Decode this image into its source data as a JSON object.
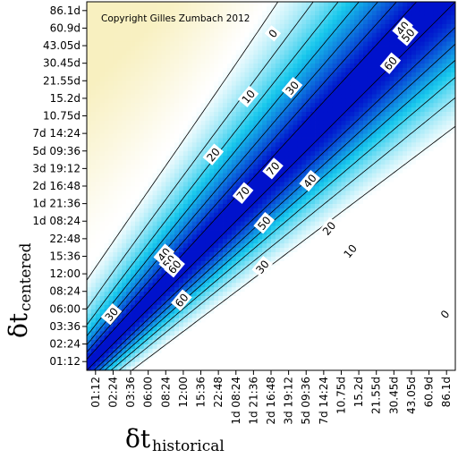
{
  "chart_data": {
    "type": "heatmap",
    "subtitle": "Copyright Gilles Zumbach 2012",
    "xlabel": {
      "symbol": "δt",
      "subscript": "historical"
    },
    "ylabel": {
      "symbol": "δt",
      "subscript": "centered"
    },
    "x_tick_labels": [
      "01:12",
      "02:24",
      "03:36",
      "06:00",
      "08:24",
      "12:00",
      "15:36",
      "22:48",
      "1d 08:24",
      "1d 21:36",
      "2d 16:48",
      "3d 19:12",
      "5d 09:36",
      "7d 14:24",
      "10.75d",
      "15.2d",
      "21.55d",
      "30.45d",
      "43.05d",
      "60.9d",
      "86.1d"
    ],
    "y_tick_labels": [
      "01:12",
      "02:24",
      "03:36",
      "06:00",
      "08:24",
      "12:00",
      "15:36",
      "22:48",
      "1d 08:24",
      "1d 21:36",
      "2d 16:48",
      "3d 19:12",
      "5d 09:36",
      "7d 14:24",
      "10.75d",
      "15.2d",
      "21.55d",
      "30.45d",
      "43.05d",
      "60.9d",
      "86.1d"
    ],
    "contour_labels": [
      {
        "text": "0",
        "x": 10.1,
        "y": 18.7
      },
      {
        "text": "10",
        "x": 8.7,
        "y": 15.1
      },
      {
        "text": "30",
        "x": 11.2,
        "y": 15.6
      },
      {
        "text": "40",
        "x": 17.5,
        "y": 19.0
      },
      {
        "text": "50",
        "x": 17.8,
        "y": 18.6
      },
      {
        "text": "60",
        "x": 16.8,
        "y": 17.0
      },
      {
        "text": "20",
        "x": 6.7,
        "y": 11.8
      },
      {
        "text": "70",
        "x": 10.1,
        "y": 11.0
      },
      {
        "text": "70",
        "x": 8.4,
        "y": 9.6
      },
      {
        "text": "40",
        "x": 12.2,
        "y": 10.3
      },
      {
        "text": "50",
        "x": 9.6,
        "y": 7.9
      },
      {
        "text": "20",
        "x": 13.3,
        "y": 7.6
      },
      {
        "text": "10",
        "x": 14.5,
        "y": 6.3
      },
      {
        "text": "30",
        "x": 9.5,
        "y": 5.4
      },
      {
        "text": "40",
        "x": 3.9,
        "y": 6.1
      },
      {
        "text": "50",
        "x": 4.2,
        "y": 5.7
      },
      {
        "text": "60",
        "x": 4.5,
        "y": 5.4
      },
      {
        "text": "60",
        "x": 4.9,
        "y": 3.5
      },
      {
        "text": "30",
        "x": 0.9,
        "y": 2.7
      },
      {
        "text": "0",
        "x": 19.9,
        "y": 2.7
      }
    ],
    "diagonal_peak": 70,
    "max_level": 70,
    "colors": {
      "low": "#ffffff",
      "warm": "#f8f0c0",
      "cyan": "#18c8ec",
      "deep": "#0012cc"
    }
  }
}
